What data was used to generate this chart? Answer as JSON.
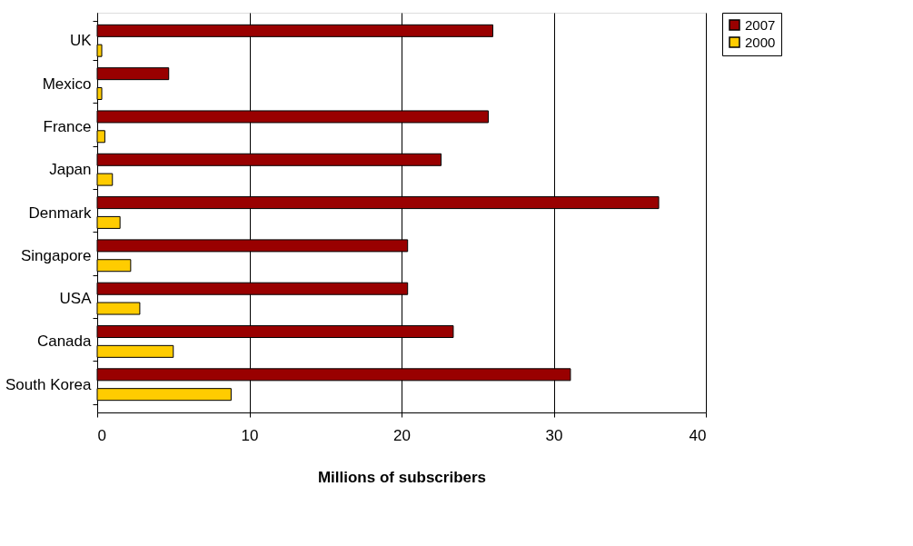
{
  "chart_data": {
    "type": "bar",
    "orientation": "horizontal",
    "xlabel": "Millions of subscribers",
    "categories": [
      "UK",
      "Mexico",
      "France",
      "Japan",
      "Denmark",
      "Singapore",
      "USA",
      "Canada",
      "South Korea"
    ],
    "series": [
      {
        "name": "2007",
        "color": "#990000",
        "values": [
          26,
          4.7,
          25.7,
          22.6,
          36.9,
          20.4,
          20.4,
          23.4,
          31.1
        ]
      },
      {
        "name": "2000",
        "color": "#ffcc00",
        "values": [
          0.3,
          0.3,
          0.5,
          1,
          1.5,
          2.2,
          2.8,
          5,
          8.8
        ]
      }
    ],
    "xlim": [
      0,
      40
    ],
    "xticks": [
      0,
      10,
      20,
      30,
      40
    ],
    "grid": "x",
    "legend": "right"
  }
}
